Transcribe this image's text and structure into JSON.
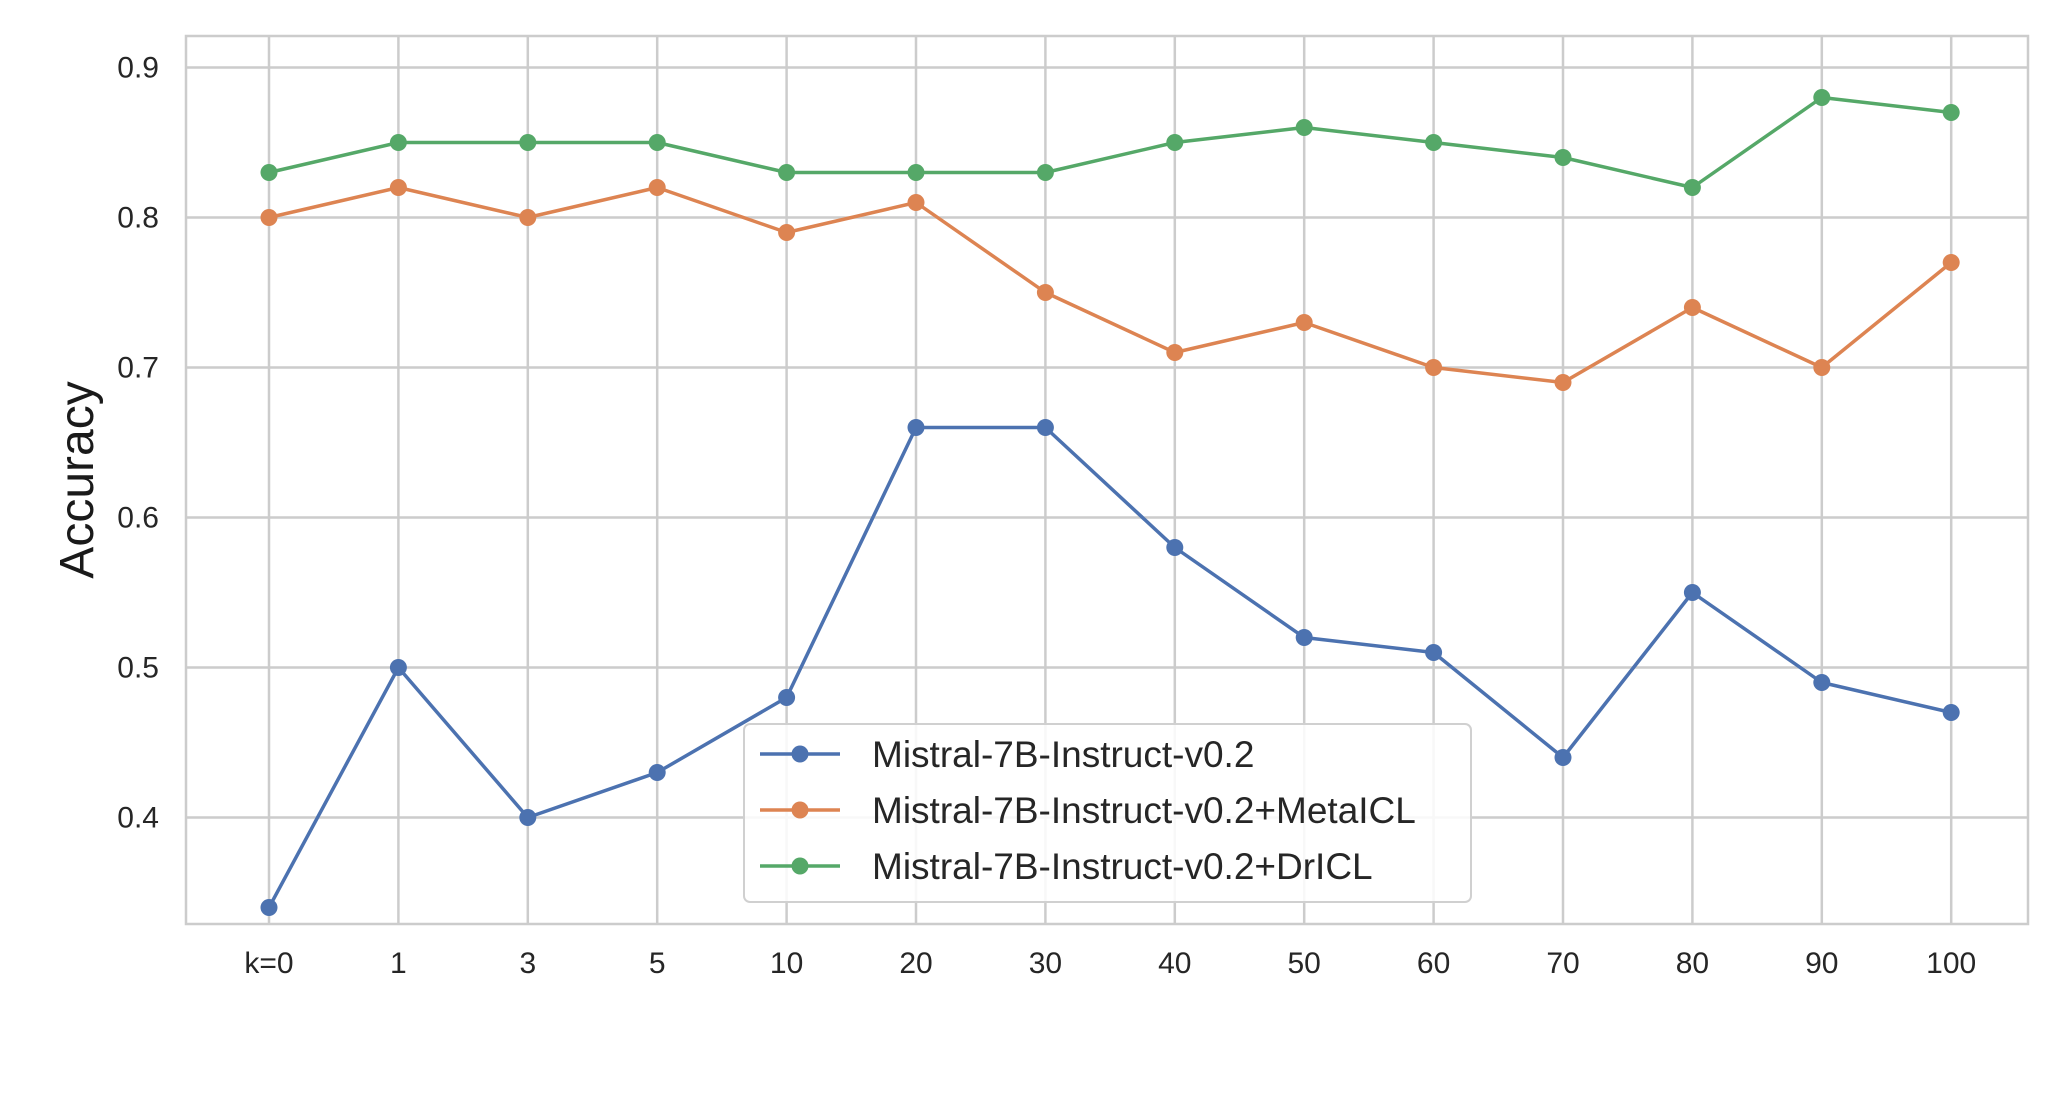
{
  "chart_data": {
    "type": "line",
    "title": "",
    "xlabel": "",
    "ylabel": "Accuracy",
    "categories": [
      "k=0",
      "1",
      "3",
      "5",
      "10",
      "20",
      "30",
      "40",
      "50",
      "60",
      "70",
      "80",
      "90",
      "100"
    ],
    "ylim": [
      0.315,
      0.905
    ],
    "yticks": [
      0.4,
      0.5,
      0.6,
      0.7,
      0.8,
      0.9
    ],
    "ytick_labels": [
      "0.4",
      "0.5",
      "0.6",
      "0.7",
      "0.8",
      "0.9"
    ],
    "grid": true,
    "legend_position": "lower-center",
    "series": [
      {
        "name": "Mistral-7B-Instruct-v0.2",
        "color": "#4c72b0",
        "marker": "circle",
        "values": [
          0.34,
          0.5,
          0.4,
          0.43,
          0.48,
          0.66,
          0.66,
          0.58,
          0.52,
          0.51,
          0.44,
          0.55,
          0.49,
          0.47
        ]
      },
      {
        "name": "Mistral-7B-Instruct-v0.2+MetaICL",
        "color": "#dd8452",
        "marker": "circle",
        "values": [
          0.8,
          0.82,
          0.8,
          0.82,
          0.79,
          0.81,
          0.75,
          0.71,
          0.73,
          0.7,
          0.69,
          0.74,
          0.7,
          0.77
        ]
      },
      {
        "name": "Mistral-7B-Instruct-v0.2+DrICL",
        "color": "#55a868",
        "marker": "circle",
        "values": [
          0.83,
          0.85,
          0.85,
          0.85,
          0.83,
          0.83,
          0.83,
          0.85,
          0.86,
          0.85,
          0.84,
          0.82,
          0.88,
          0.87
        ]
      }
    ]
  }
}
